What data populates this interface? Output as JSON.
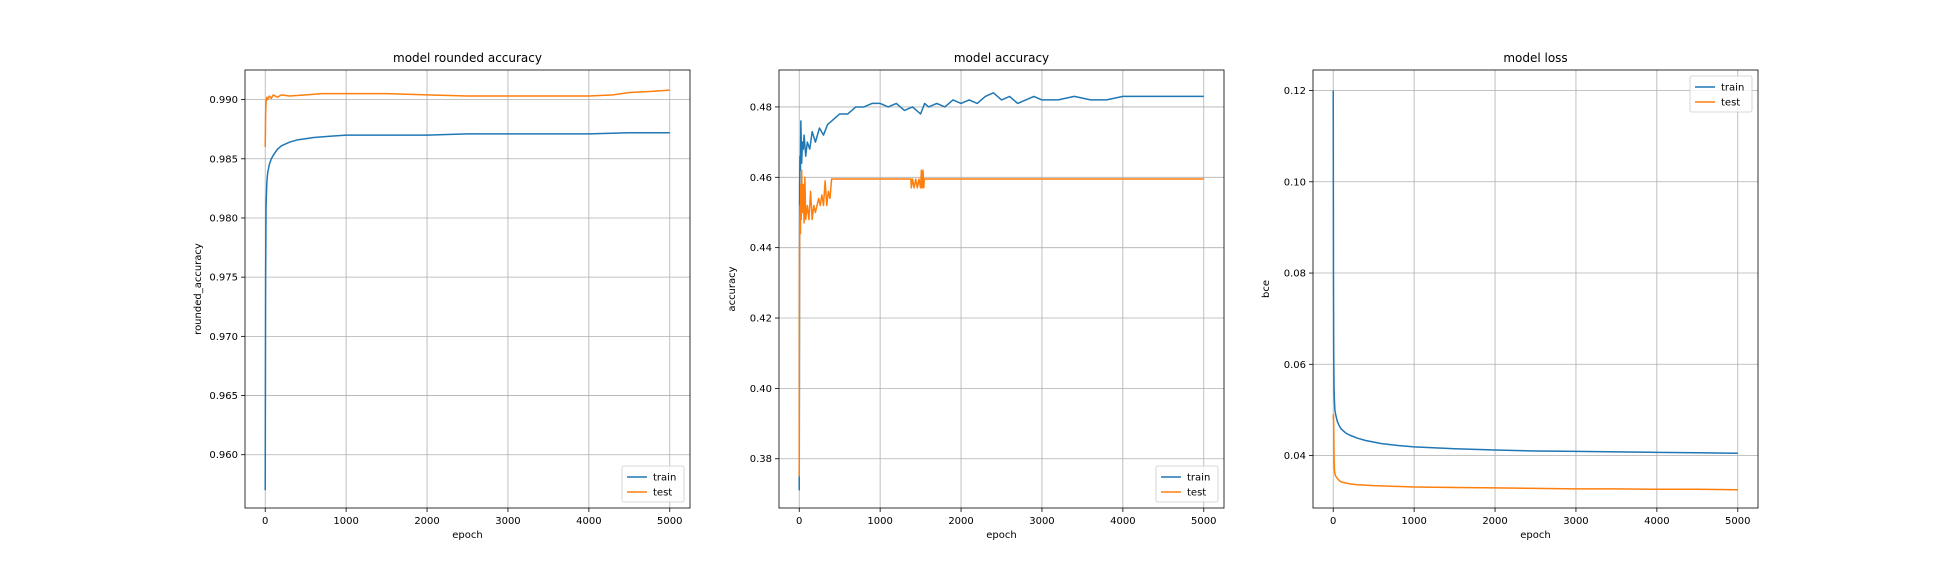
{
  "chart_data": [
    {
      "type": "line",
      "title": "model rounded accuracy",
      "xlabel": "epoch",
      "ylabel": "rounded_accuracy",
      "xlim": [
        -250,
        5250
      ],
      "ylim": [
        0.9555,
        0.9925
      ],
      "xticks": [
        0,
        1000,
        2000,
        3000,
        4000,
        5000
      ],
      "yticks": [
        0.96,
        0.965,
        0.97,
        0.975,
        0.98,
        0.985,
        0.99
      ],
      "ytick_labels": [
        "0.960",
        "0.965",
        "0.970",
        "0.975",
        "0.980",
        "0.985",
        "0.990"
      ],
      "grid": true,
      "legend": "lower-right",
      "series": [
        {
          "name": "train",
          "color": "#1f77b4",
          "x": [
            0,
            5,
            10,
            20,
            30,
            50,
            75,
            100,
            150,
            200,
            300,
            400,
            600,
            800,
            1000,
            1500,
            2000,
            2500,
            3000,
            3500,
            4000,
            4500,
            5000
          ],
          "y": [
            0.957,
            0.975,
            0.981,
            0.983,
            0.9838,
            0.9845,
            0.985,
            0.9853,
            0.9858,
            0.9861,
            0.9864,
            0.9866,
            0.9868,
            0.9869,
            0.987,
            0.987,
            0.987,
            0.9871,
            0.9871,
            0.9871,
            0.9871,
            0.9872,
            0.9872
          ]
        },
        {
          "name": "test",
          "color": "#ff7f0e",
          "x": [
            0,
            5,
            10,
            20,
            30,
            50,
            75,
            100,
            150,
            200,
            300,
            500,
            700,
            1000,
            1500,
            2000,
            2500,
            3000,
            3500,
            4000,
            4300,
            4500,
            4800,
            5000
          ],
          "y": [
            0.986,
            0.9888,
            0.9898,
            0.9902,
            0.99,
            0.9903,
            0.9901,
            0.9904,
            0.9902,
            0.9904,
            0.9903,
            0.9904,
            0.9905,
            0.9905,
            0.9905,
            0.9904,
            0.9903,
            0.9903,
            0.9903,
            0.9903,
            0.9904,
            0.9906,
            0.9907,
            0.9908
          ]
        }
      ]
    },
    {
      "type": "line",
      "title": "model accuracy",
      "xlabel": "epoch",
      "ylabel": "accuracy",
      "xlim": [
        -250,
        5250
      ],
      "ylim": [
        0.366,
        0.4905
      ],
      "xticks": [
        0,
        1000,
        2000,
        3000,
        4000,
        5000
      ],
      "yticks": [
        0.38,
        0.4,
        0.42,
        0.44,
        0.46,
        0.48
      ],
      "ytick_labels": [
        "0.38",
        "0.40",
        "0.42",
        "0.44",
        "0.46",
        "0.48"
      ],
      "grid": true,
      "legend": "lower-right",
      "series": [
        {
          "name": "train",
          "color": "#1f77b4",
          "x": [
            0,
            5,
            10,
            15,
            20,
            30,
            40,
            50,
            60,
            80,
            100,
            130,
            160,
            200,
            250,
            300,
            350,
            400,
            500,
            600,
            700,
            800,
            900,
            1000,
            1100,
            1200,
            1300,
            1400,
            1500,
            1550,
            1600,
            1700,
            1800,
            1900,
            2000,
            2100,
            2200,
            2300,
            2400,
            2500,
            2600,
            2700,
            2800,
            2900,
            3000,
            3200,
            3400,
            3600,
            3800,
            4000,
            4200,
            4400,
            4600,
            4800,
            5000
          ],
          "y": [
            0.371,
            0.458,
            0.466,
            0.462,
            0.476,
            0.464,
            0.47,
            0.468,
            0.472,
            0.466,
            0.47,
            0.468,
            0.473,
            0.47,
            0.474,
            0.472,
            0.475,
            0.476,
            0.478,
            0.478,
            0.48,
            0.48,
            0.481,
            0.481,
            0.48,
            0.481,
            0.479,
            0.48,
            0.478,
            0.481,
            0.48,
            0.481,
            0.48,
            0.482,
            0.481,
            0.482,
            0.481,
            0.483,
            0.484,
            0.482,
            0.483,
            0.481,
            0.482,
            0.483,
            0.482,
            0.482,
            0.483,
            0.482,
            0.482,
            0.483,
            0.483,
            0.483,
            0.483,
            0.483,
            0.483
          ]
        },
        {
          "name": "test",
          "color": "#ff7f0e",
          "x": [
            0,
            3,
            6,
            10,
            15,
            20,
            25,
            30,
            40,
            50,
            60,
            70,
            80,
            100,
            120,
            140,
            160,
            180,
            200,
            220,
            240,
            260,
            280,
            300,
            320,
            340,
            360,
            380,
            400,
            500,
            1000,
            1380,
            1385,
            1400,
            1420,
            1440,
            1460,
            1480,
            1500,
            1510,
            1520,
            1530,
            1540,
            1545,
            1550,
            2000,
            3000,
            4000,
            5000
          ],
          "y": [
            0.375,
            0.438,
            0.446,
            0.452,
            0.444,
            0.458,
            0.448,
            0.462,
            0.45,
            0.458,
            0.447,
            0.46,
            0.448,
            0.452,
            0.448,
            0.456,
            0.448,
            0.452,
            0.45,
            0.452,
            0.454,
            0.452,
            0.455,
            0.452,
            0.459,
            0.452,
            0.456,
            0.454,
            0.4595,
            0.4595,
            0.4595,
            0.4595,
            0.457,
            0.4595,
            0.457,
            0.4595,
            0.457,
            0.4595,
            0.457,
            0.462,
            0.457,
            0.462,
            0.457,
            0.4595,
            0.4595,
            0.4595,
            0.4595,
            0.4595,
            0.4595
          ]
        }
      ]
    },
    {
      "type": "line",
      "title": "model loss",
      "xlabel": "epoch",
      "ylabel": "bce",
      "xlim": [
        -250,
        5250
      ],
      "ylim": [
        0.0285,
        0.1245
      ],
      "xticks": [
        0,
        1000,
        2000,
        3000,
        4000,
        5000
      ],
      "yticks": [
        0.04,
        0.06,
        0.08,
        0.1,
        0.12
      ],
      "ytick_labels": [
        "0.04",
        "0.06",
        "0.08",
        "0.10",
        "0.12"
      ],
      "grid": true,
      "legend": "upper-right",
      "series": [
        {
          "name": "train",
          "color": "#1f77b4",
          "x": [
            0,
            3,
            6,
            10,
            15,
            20,
            30,
            50,
            75,
            100,
            150,
            200,
            300,
            400,
            600,
            800,
            1000,
            1500,
            2000,
            2500,
            3000,
            3500,
            4000,
            4500,
            5000
          ],
          "y": [
            0.12,
            0.08,
            0.062,
            0.055,
            0.052,
            0.05,
            0.049,
            0.0475,
            0.0465,
            0.0458,
            0.045,
            0.0445,
            0.0438,
            0.0433,
            0.0426,
            0.0422,
            0.0419,
            0.0415,
            0.0412,
            0.041,
            0.0409,
            0.0408,
            0.0407,
            0.0406,
            0.0405
          ]
        },
        {
          "name": "test",
          "color": "#ff7f0e",
          "x": [
            0,
            3,
            6,
            10,
            15,
            20,
            30,
            50,
            75,
            100,
            150,
            200,
            300,
            500,
            1000,
            1500,
            2000,
            2500,
            3000,
            3500,
            4000,
            4500,
            5000
          ],
          "y": [
            0.048,
            0.049,
            0.046,
            0.04,
            0.037,
            0.036,
            0.0355,
            0.035,
            0.0345,
            0.0342,
            0.034,
            0.0338,
            0.0336,
            0.0334,
            0.0331,
            0.033,
            0.0329,
            0.0328,
            0.0327,
            0.0327,
            0.0326,
            0.0326,
            0.0325
          ]
        }
      ]
    }
  ]
}
